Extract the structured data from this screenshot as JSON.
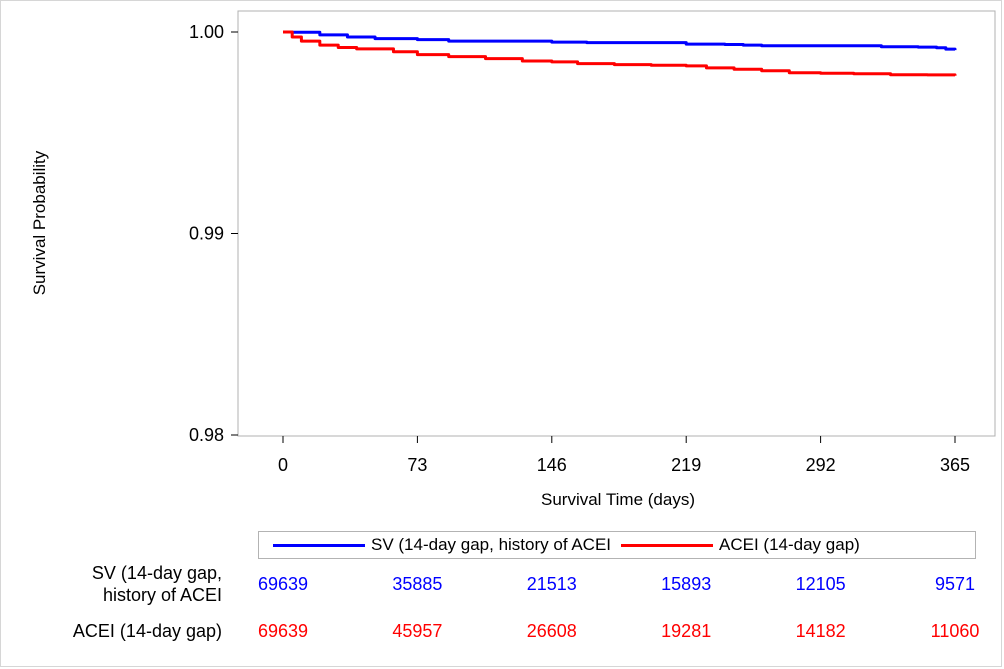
{
  "chart_data": {
    "type": "line",
    "title": "",
    "xlabel": "Survival Time (days)",
    "ylabel": "Survival Probability",
    "xlim": [
      0,
      365
    ],
    "ylim": [
      0.98,
      1.0
    ],
    "x_ticks": [
      0,
      73,
      146,
      219,
      292,
      365
    ],
    "x_tick_labels": [
      "0",
      "73",
      "146",
      "219",
      "292",
      "365"
    ],
    "y_ticks": [
      0.98,
      0.99,
      1.0
    ],
    "y_tick_labels": [
      "0.98",
      "0.99",
      "1.00"
    ],
    "grid": false,
    "legend_position": "bottom",
    "series": [
      {
        "name": "SV (14-day gap, history of ACEI",
        "color": "#0000ff",
        "x": [
          0,
          5,
          20,
          35,
          50,
          73,
          90,
          146,
          165,
          219,
          225,
          240,
          250,
          260,
          275,
          292,
          310,
          325,
          345,
          355,
          360,
          365
        ],
        "y": [
          1.0,
          0.99999,
          0.99986,
          0.99975,
          0.99967,
          0.99962,
          0.99955,
          0.9995,
          0.99947,
          0.9994,
          0.9994,
          0.99938,
          0.99935,
          0.99932,
          0.99932,
          0.99932,
          0.99932,
          0.99927,
          0.99925,
          0.99922,
          0.99915,
          0.9991
        ]
      },
      {
        "name": "ACEI (14-day gap)",
        "color": "#ff0000",
        "x": [
          0,
          5,
          10,
          20,
          30,
          40,
          60,
          73,
          90,
          110,
          130,
          146,
          160,
          180,
          200,
          219,
          230,
          245,
          260,
          275,
          292,
          310,
          330,
          350,
          365
        ],
        "y": [
          1.0,
          0.99975,
          0.99955,
          0.99935,
          0.99923,
          0.99916,
          0.99902,
          0.99888,
          0.99878,
          0.99868,
          0.99856,
          0.99852,
          0.99843,
          0.99838,
          0.99835,
          0.99832,
          0.99822,
          0.99815,
          0.99808,
          0.99798,
          0.99795,
          0.99793,
          0.99788,
          0.99787,
          0.99783
        ]
      }
    ]
  },
  "risk_table": {
    "rows": [
      {
        "label_line1": "SV (14-day gap,",
        "label_line2": "history of ACEI",
        "color": "#0000ff",
        "values": [
          "69639",
          "35885",
          "21513",
          "15893",
          "12105",
          "9571"
        ]
      },
      {
        "label_line1": "ACEI (14-day gap)",
        "color": "#ff0000",
        "values": [
          "69639",
          "45957",
          "26608",
          "19281",
          "14182",
          "11060"
        ]
      }
    ]
  }
}
